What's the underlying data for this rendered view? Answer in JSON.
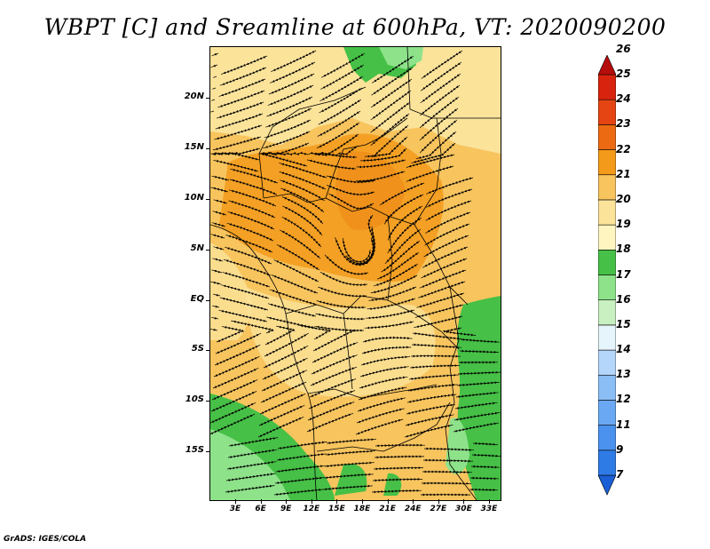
{
  "title": "WBPT [C] and Sreamline at 600hPa, VT: 2020090200",
  "map": {
    "lat_labels": [
      "20N",
      "15N",
      "10N",
      "5N",
      "EQ",
      "5S",
      "10S",
      "15S"
    ],
    "lon_labels": [
      "3E",
      "6E",
      "9E",
      "12E",
      "15E",
      "18E",
      "21E",
      "24E",
      "27E",
      "30E",
      "33E"
    ],
    "lat_range": [
      -20,
      24
    ],
    "lon_range": [
      0,
      35
    ],
    "layers": [
      "wet-bulb potential temperature shading",
      "600hPa streamlines",
      "country boundaries"
    ]
  },
  "colorbar": {
    "levels": [
      "7",
      "9",
      "11",
      "12",
      "13",
      "14",
      "15",
      "16",
      "17",
      "18",
      "19",
      "20",
      "21",
      "22",
      "23",
      "24",
      "25",
      "26"
    ],
    "colors": [
      "#1a5fd6",
      "#2f7be6",
      "#4a92ee",
      "#6aa8f3",
      "#8cbef6",
      "#b4d6fa",
      "#e6f5fb",
      "#c8f0c0",
      "#8ee28a",
      "#46c046",
      "#fff5c0",
      "#fbe39a",
      "#f7c45e",
      "#f39a1a",
      "#ec6a12",
      "#e54512",
      "#d8240f",
      "#b50c0c"
    ],
    "extend": "both"
  },
  "credit": "GrADS: IGES/COLA"
}
